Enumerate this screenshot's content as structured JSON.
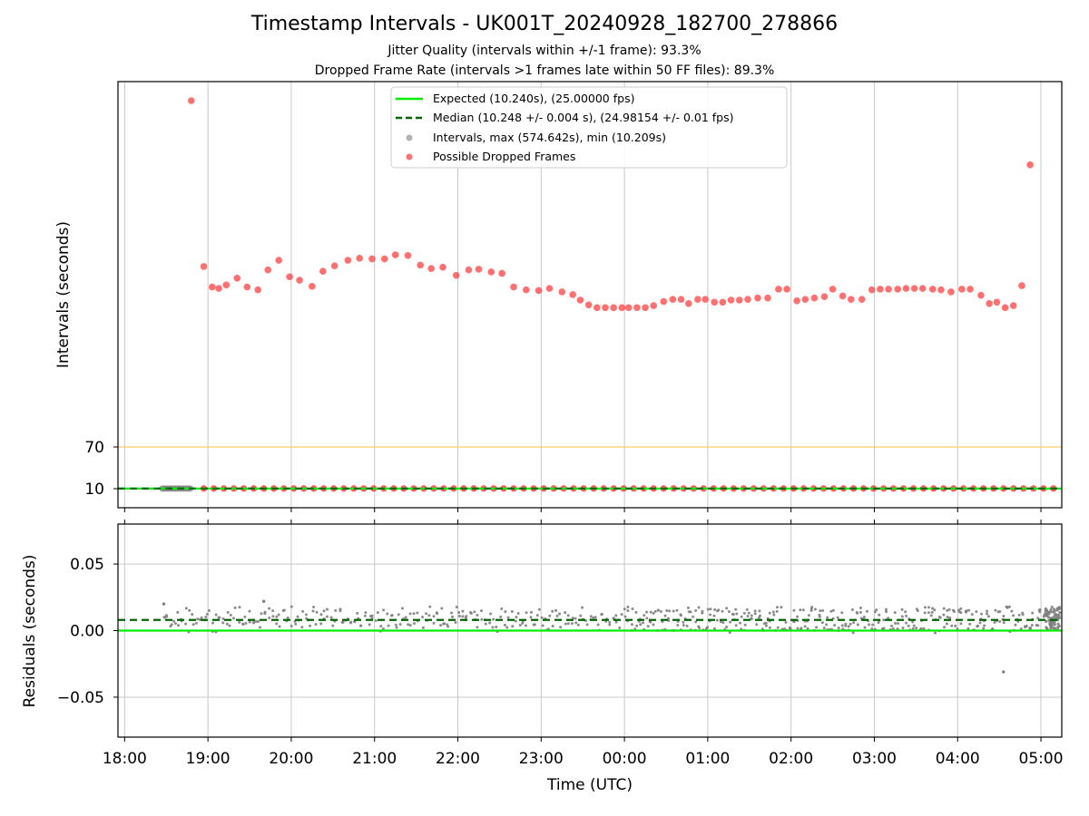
{
  "figure": {
    "title": "Timestamp Intervals - UK001T_20240928_182700_278866",
    "subtitle_1": "Jitter Quality (intervals within +/-1 frame): 93.3%",
    "subtitle_2": "Dropped Frame Rate (intervals >1 frames late within 50 FF files): 89.3%",
    "xlabel": "Time (UTC)"
  },
  "colors": {
    "expected": "#00ee00",
    "median": "#006400",
    "intervals": "#808080",
    "dropped": "#ff3333",
    "threshold": "#ffcc66",
    "grid": "#c8c8c8"
  },
  "chart_data": [
    {
      "type": "scatter",
      "title": "Timestamp Intervals - UK001T_20240928_182700_278866",
      "ylabel": "Intervals (seconds)",
      "x_unit": "hours since 18:00 UTC",
      "xlim": [
        -0.08,
        11.25
      ],
      "xticks": [
        0,
        1,
        2,
        3,
        4,
        5,
        6,
        7,
        8,
        9,
        10,
        11
      ],
      "xtick_labels": [
        "18:00",
        "19:00",
        "20:00",
        "21:00",
        "22:00",
        "23:00",
        "00:00",
        "01:00",
        "02:00",
        "03:00",
        "04:00",
        "05:00"
      ],
      "yticks": [
        10,
        70
      ],
      "ytick_labels": [
        "10",
        "70"
      ],
      "grid": "vertical",
      "legend_position": "top-center",
      "legend": [
        "Expected (10.240s), (25.00000 fps)",
        "Median (10.248 +/- 0.004 s), (24.98154 +/- 0.01 fps)",
        "Intervals, max (574.642s), min (10.209s)",
        "Possible Dropped Frames"
      ],
      "reference_lines": {
        "expected": 10.24,
        "median": 10.248,
        "threshold": 70
      },
      "intervals_segment": {
        "x_start": 0.45,
        "x_end": 0.8,
        "y": 10.25
      },
      "baseline_dropped": {
        "x_start": 0.95,
        "x_end": 11.2,
        "step": 0.12,
        "y": 10.3
      },
      "dropped_points": {
        "x": [
          0.8,
          0.95,
          1.05,
          1.13,
          1.22,
          1.35,
          1.47,
          1.6,
          1.72,
          1.85,
          1.98,
          2.1,
          2.25,
          2.38,
          2.52,
          2.68,
          2.82,
          2.97,
          3.12,
          3.25,
          3.4,
          3.55,
          3.68,
          3.82,
          3.98,
          4.13,
          4.25,
          4.4,
          4.53,
          4.67,
          4.82,
          4.97,
          5.1,
          5.25,
          5.38,
          5.47,
          5.57,
          5.67,
          5.77,
          5.87,
          5.97,
          6.05,
          6.15,
          6.25,
          6.35,
          6.47,
          6.58,
          6.68,
          6.77,
          6.88,
          6.97,
          7.08,
          7.18,
          7.28,
          7.38,
          7.48,
          7.6,
          7.72,
          7.85,
          7.95,
          8.07,
          8.17,
          8.28,
          8.4,
          8.5,
          8.62,
          8.72,
          8.85,
          8.97,
          9.07,
          9.17,
          9.28,
          9.38,
          9.48,
          9.58,
          9.7,
          9.8,
          9.92,
          10.05,
          10.15,
          10.28,
          10.38,
          10.47,
          10.57,
          10.67,
          10.77,
          10.87
        ],
        "y": [
          574.6,
          333,
          303,
          301,
          306,
          316,
          303,
          299,
          328,
          342,
          318,
          313,
          304,
          326,
          334,
          342,
          345,
          344,
          344,
          350,
          349,
          335,
          330,
          332,
          320,
          328,
          329,
          325,
          323,
          303,
          299,
          298,
          301,
          296,
          292,
          284,
          277,
          273,
          273,
          273,
          273,
          273,
          273,
          273,
          276,
          282,
          285,
          285,
          279,
          285,
          285,
          281,
          281,
          284,
          284,
          285,
          287,
          287,
          300,
          300,
          283,
          285,
          287,
          289,
          300,
          290,
          285,
          285,
          299,
          300,
          300,
          300,
          301,
          301,
          301,
          300,
          299,
          296,
          300,
          300,
          291,
          279,
          281,
          273,
          276,
          305,
          481
        ]
      }
    },
    {
      "type": "scatter",
      "ylabel": "Residuals (seconds)",
      "xlabel": "Time (UTC)",
      "x_unit": "hours since 18:00 UTC",
      "xlim": [
        -0.08,
        11.25
      ],
      "ylim": [
        -0.08,
        0.08
      ],
      "yticks": [
        -0.05,
        0.0,
        0.05
      ],
      "ytick_labels": [
        "−0.05",
        "0.00",
        "0.05"
      ],
      "grid": "both",
      "reference_lines": {
        "expected": 0.0,
        "median": 0.008
      },
      "residuals": {
        "note_density": "points every ~0.04 h from 18:28 to 05:13",
        "x_start": 0.45,
        "x_end": 11.2,
        "outliers": [
          {
            "x": 0.47,
            "y": 0.02
          },
          {
            "x": 1.67,
            "y": 0.022
          },
          {
            "x": 10.55,
            "y": -0.031
          }
        ]
      }
    }
  ]
}
